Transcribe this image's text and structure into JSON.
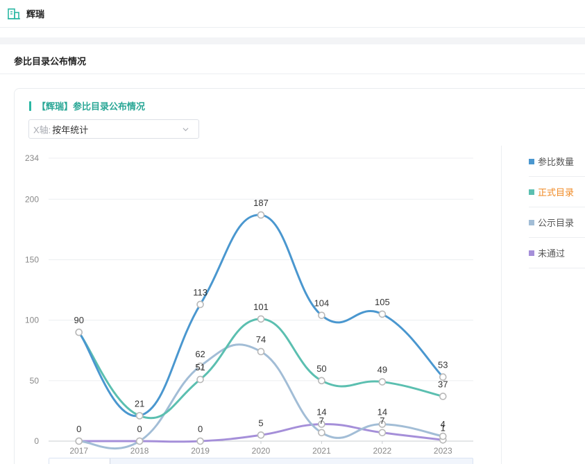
{
  "header": {
    "org_name": "辉瑞",
    "org_icon": "building-icon"
  },
  "section": {
    "title": "参比目录公布情况"
  },
  "card": {
    "title": "【辉瑞】参比目录公布情况"
  },
  "xaxis_select": {
    "prefix": "X轴:",
    "value": "按年统计"
  },
  "colors": {
    "accent": "#2bb7a3",
    "legend_active": "#f08a24"
  },
  "legend": [
    {
      "name": "参比数量",
      "color": "#4a97cf",
      "active": false
    },
    {
      "name": "正式目录",
      "color": "#5bbfb0",
      "active": true
    },
    {
      "name": "公示目录",
      "color": "#a2bdd6",
      "active": false
    },
    {
      "name": "未通过",
      "color": "#a58fd9",
      "active": false
    }
  ],
  "chart_data": {
    "type": "line",
    "smooth": true,
    "x": [
      "2017",
      "2018",
      "2019",
      "2020",
      "2021",
      "2022",
      "2023"
    ],
    "ylim": [
      0,
      234
    ],
    "yticks": [
      0,
      50,
      100,
      150,
      200,
      234
    ],
    "grid": true,
    "legend_position": "right",
    "series": [
      {
        "name": "参比数量",
        "color": "#4a97cf",
        "values": [
          90,
          21,
          113,
          187,
          104,
          105,
          53
        ]
      },
      {
        "name": "正式目录",
        "color": "#5bbfb0",
        "values": [
          90,
          21,
          51,
          101,
          50,
          49,
          37
        ]
      },
      {
        "name": "公示目录",
        "color": "#a2bdd6",
        "values": [
          0,
          0,
          62,
          74,
          7,
          14,
          4
        ]
      },
      {
        "name": "未通过",
        "color": "#a58fd9",
        "values": [
          0,
          0,
          0,
          5,
          14,
          7,
          1
        ]
      }
    ],
    "point_labels": [
      {
        "series": 0,
        "index": 0,
        "text": "90"
      },
      {
        "series": 0,
        "index": 1,
        "text": "21"
      },
      {
        "series": 0,
        "index": 2,
        "text": "113"
      },
      {
        "series": 0,
        "index": 3,
        "text": "187"
      },
      {
        "series": 0,
        "index": 4,
        "text": "104"
      },
      {
        "series": 0,
        "index": 5,
        "text": "105"
      },
      {
        "series": 0,
        "index": 6,
        "text": "53"
      },
      {
        "series": 1,
        "index": 2,
        "text": "51"
      },
      {
        "series": 1,
        "index": 3,
        "text": "101"
      },
      {
        "series": 1,
        "index": 4,
        "text": "50"
      },
      {
        "series": 1,
        "index": 5,
        "text": "49"
      },
      {
        "series": 1,
        "index": 6,
        "text": "37"
      },
      {
        "series": 2,
        "index": 0,
        "text": "0"
      },
      {
        "series": 2,
        "index": 1,
        "text": "0"
      },
      {
        "series": 2,
        "index": 2,
        "text": "62"
      },
      {
        "series": 2,
        "index": 3,
        "text": "74"
      },
      {
        "series": 2,
        "index": 4,
        "text": "7"
      },
      {
        "series": 2,
        "index": 5,
        "text": "14"
      },
      {
        "series": 2,
        "index": 6,
        "text": "4"
      },
      {
        "series": 3,
        "index": 2,
        "text": "0"
      },
      {
        "series": 3,
        "index": 3,
        "text": "5"
      },
      {
        "series": 3,
        "index": 4,
        "text": "14"
      },
      {
        "series": 3,
        "index": 5,
        "text": "7"
      },
      {
        "series": 3,
        "index": 6,
        "text": "1"
      }
    ]
  }
}
